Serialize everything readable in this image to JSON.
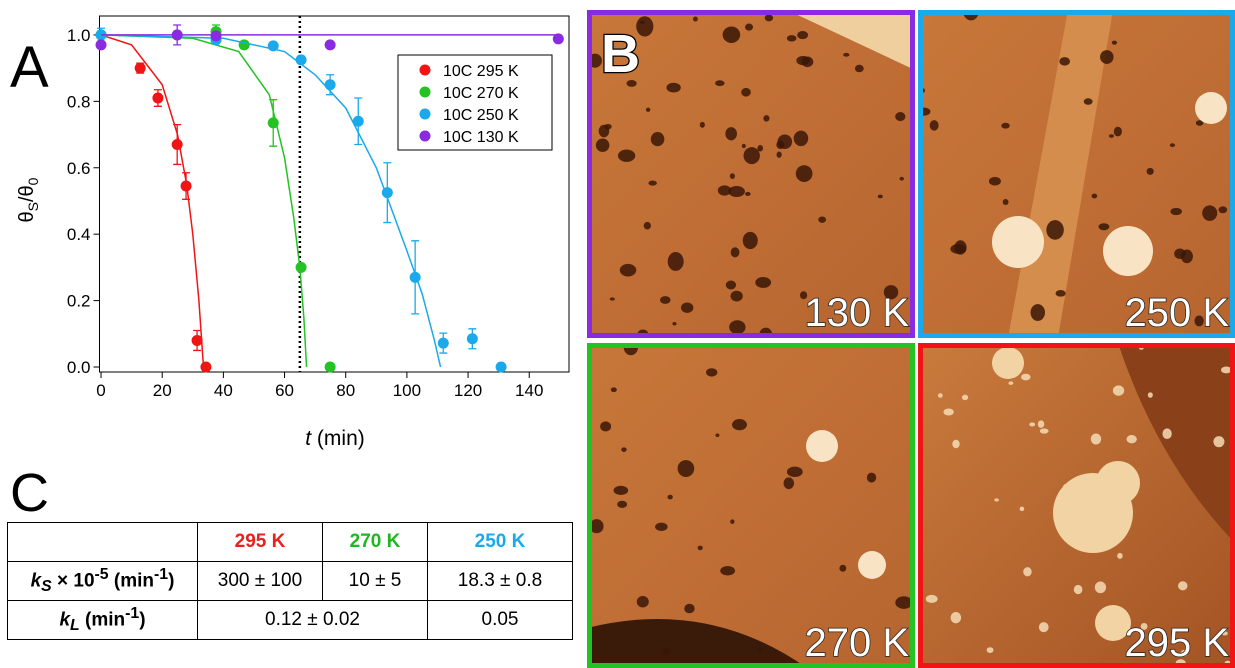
{
  "panels": {
    "a": "A",
    "b": "B",
    "c": "C"
  },
  "chart_data": {
    "type": "scatter",
    "xlabel": [
      "t",
      " (min)"
    ],
    "ylabel": [
      "θ",
      "S",
      "/θ",
      "0"
    ],
    "xlim": [
      -0.5,
      153
    ],
    "ylim": [
      -0.015,
      1.057
    ],
    "xticks": [
      0,
      20,
      40,
      60,
      80,
      100,
      120,
      140
    ],
    "yticks": [
      {
        "value": 0,
        "label": "0.0"
      },
      {
        "value": 0.2,
        "label": "0.2"
      },
      {
        "value": 0.4,
        "label": "0.4"
      },
      {
        "value": 0.6,
        "label": "0.6"
      },
      {
        "value": 0.8,
        "label": "0.8"
      },
      {
        "value": 1,
        "label": "1.0"
      }
    ],
    "vline": 65,
    "legend": "upper right",
    "series": [
      {
        "name": "10C 295 K",
        "color": "#f01414",
        "x": [
          12.8,
          18.6,
          24.9,
          27.8,
          31.4,
          34.3
        ],
        "values": [
          0.9,
          0.81,
          0.67,
          0.545,
          0.08,
          0.0
        ],
        "errors": [
          0.015,
          0.025,
          0.06,
          0.04,
          0.03,
          0.0
        ],
        "fit": {
          "x": [
            0,
            10,
            20,
            25,
            28,
            30,
            32,
            33.5
          ],
          "values": [
            1.0,
            0.97,
            0.85,
            0.7,
            0.55,
            0.4,
            0.2,
            0.0
          ]
        }
      },
      {
        "name": "10C 270 K",
        "color": "#22c322",
        "x": [
          0,
          37.6,
          46.8,
          56.3,
          65.4,
          74.9
        ],
        "values": [
          1.0,
          1.01,
          0.97,
          0.735,
          0.3,
          0.0
        ],
        "errors": [
          0.01,
          0.02,
          0.01,
          0.07,
          0.01,
          0.0
        ],
        "fit": {
          "x": [
            0,
            30,
            45,
            55,
            60,
            63,
            65,
            66.3,
            67.2
          ],
          "values": [
            1.0,
            0.99,
            0.95,
            0.82,
            0.63,
            0.45,
            0.3,
            0.15,
            0.0
          ]
        }
      },
      {
        "name": "10C 250 K",
        "color": "#1aa9ea",
        "x": [
          0,
          37.6,
          56.3,
          65.4,
          74.9,
          84.1,
          93.6,
          102.7,
          111.9,
          121.4,
          130.8
        ],
        "values": [
          1.0,
          0.985,
          0.967,
          0.925,
          0.85,
          0.74,
          0.525,
          0.27,
          0.072,
          0.085,
          0.0
        ],
        "errors": [
          0.02,
          0.01,
          0.01,
          0.01,
          0.03,
          0.07,
          0.09,
          0.11,
          0.03,
          0.03,
          0.0
        ],
        "fit": {
          "x": [
            0,
            40,
            60,
            70,
            80,
            90,
            100,
            105,
            109,
            111
          ],
          "values": [
            1.0,
            0.99,
            0.95,
            0.88,
            0.78,
            0.6,
            0.35,
            0.22,
            0.08,
            0.0
          ]
        }
      },
      {
        "name": "10C 130 K",
        "color": "#8a2be2",
        "x": [
          0,
          24.9,
          37.6,
          74.9,
          149.5
        ],
        "values": [
          0.97,
          1.0,
          0.997,
          0.97,
          0.988
        ],
        "errors": [
          0.01,
          0.03,
          0.01,
          0.0,
          0.0
        ],
        "fit": {
          "x": [
            0,
            150
          ],
          "values": [
            1.0,
            1.0
          ]
        }
      }
    ]
  },
  "images": [
    {
      "label": "130 K",
      "border": "#8a2be2"
    },
    {
      "label": "250 K",
      "border": "#1aa9ea"
    },
    {
      "label": "270 K",
      "border": "#22c322"
    },
    {
      "label": "295 K",
      "border": "#f01414"
    }
  ],
  "table": {
    "header": [
      "295 K",
      "270 K",
      "250 K"
    ],
    "rows": [
      {
        "label": [
          "k",
          "S",
          " × 10",
          "-5",
          " (min",
          "-1",
          ")"
        ],
        "cells": [
          "300 ± 100",
          "10 ± 5",
          "18.3 ± 0.8"
        ]
      },
      {
        "label": [
          "k",
          "L",
          " (min",
          "-1",
          ")"
        ],
        "cells": [
          "0.12 ± 0.02",
          "0.05"
        ]
      }
    ]
  }
}
